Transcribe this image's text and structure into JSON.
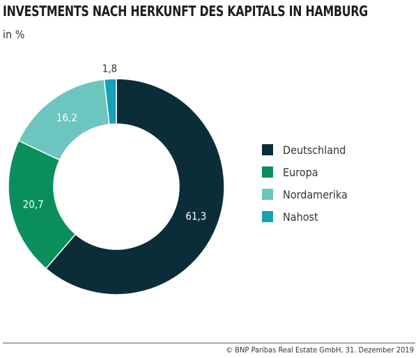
{
  "chart_data": {
    "type": "pie",
    "variant": "donut",
    "title": "INVESTMENTS NACH HERKUNFT DES KAPITALS IN HAMBURG",
    "subtitle": "in %",
    "categories": [
      "Deutschland",
      "Europa",
      "Nordamerika",
      "Nahost"
    ],
    "values": [
      61.3,
      20.7,
      16.2,
      1.8
    ],
    "labels": [
      "61,3",
      "20,7",
      "16,2",
      "1,8"
    ],
    "colors": [
      "#0b2d38",
      "#0a8f5c",
      "#6cc5be",
      "#1a9fb8"
    ],
    "legend": "right"
  },
  "footer": {
    "source": "© BNP Paribas Real Estate GmbH, 31. Dezember 2019"
  }
}
